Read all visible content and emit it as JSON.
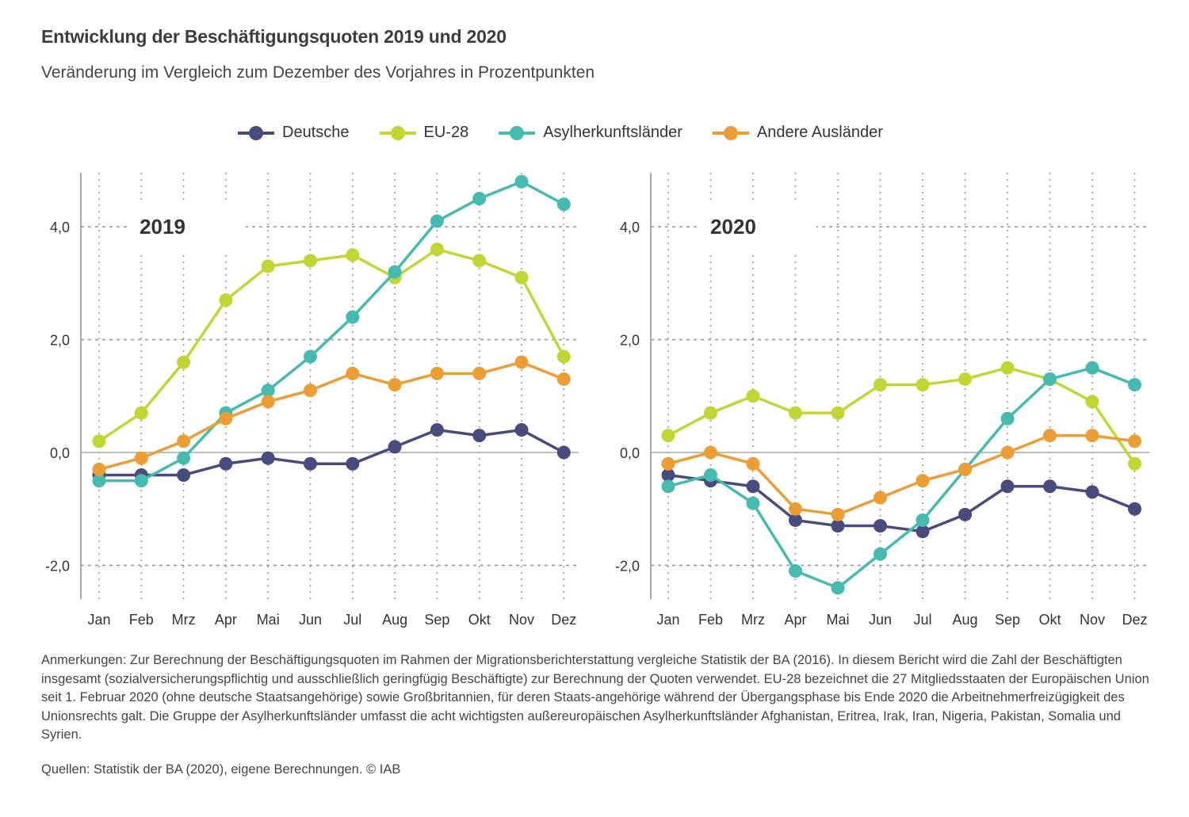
{
  "title": "Entwicklung der Beschäftigungsquoten 2019 und 2020",
  "subtitle": "Veränderung im Vergleich zum Dezember des Vorjahres in Prozentpunkten",
  "legend": [
    {
      "name": "Deutsche",
      "color": "#474b7e"
    },
    {
      "name": "EU-28",
      "color": "#c2d633"
    },
    {
      "name": "Asylherkunftsländer",
      "color": "#45bbb0"
    },
    {
      "name": "Andere Ausländer",
      "color": "#ec9d33"
    }
  ],
  "notes": "Anmerkungen: Zur Berechnung der Beschäftigungsquoten im Rahmen der Migrationsberichterstattung vergleiche Statistik der BA (2016). In diesem Bericht wird die Zahl der Beschäftigten insgesamt (sozialversicherungspflichtig und ausschließlich geringfügig Beschäftigte) zur Berechnung der Quoten verwendet. EU-28 bezeichnet die 27 Mitgliedsstaaten der Europäischen Union seit 1. Februar 2020 (ohne deutsche Staatsangehörige) sowie Großbritannien, für deren Staats-angehörige während der Übergangsphase bis Ende 2020 die Arbeitnehmerfreizügigkeit des Unionsrechts galt. Die Gruppe der Asylherkunftsländer umfasst die acht wichtigsten außereuropäischen Asylherkunftsländer Afghanistan, Eritrea, Irak, Iran, Nigeria, Pakistan, Somalia und Syrien.",
  "sources": "Quellen: Statistik der BA (2020), eigene Berechnungen.   © IAB",
  "chart_data": [
    {
      "type": "line",
      "title": "2019",
      "xlabel": "",
      "ylabel": "",
      "categories": [
        "Jan",
        "Feb",
        "Mrz",
        "Apr",
        "Mai",
        "Jun",
        "Jul",
        "Aug",
        "Sep",
        "Okt",
        "Nov",
        "Dez"
      ],
      "yticks": [
        -2.0,
        0.0,
        2.0,
        4.0
      ],
      "ytick_labels": [
        "-2,0",
        "0,0",
        "2,0",
        "4,0"
      ],
      "ylim": [
        -2.6,
        4.9
      ],
      "grid": true,
      "legend_position": "top-center",
      "series": [
        {
          "name": "Deutsche",
          "color": "#474b7e",
          "values": [
            -0.4,
            -0.4,
            -0.4,
            -0.2,
            -0.1,
            -0.2,
            -0.2,
            0.1,
            0.4,
            0.3,
            0.4,
            0.0
          ]
        },
        {
          "name": "EU-28",
          "color": "#c2d633",
          "values": [
            0.2,
            0.7,
            1.6,
            2.7,
            3.3,
            3.4,
            3.5,
            3.1,
            3.6,
            3.4,
            3.1,
            1.7
          ]
        },
        {
          "name": "Asylherkunftsländer",
          "color": "#45bbb0",
          "values": [
            -0.5,
            -0.5,
            -0.1,
            0.7,
            1.1,
            1.7,
            2.4,
            3.2,
            4.1,
            4.5,
            4.8,
            4.4
          ]
        },
        {
          "name": "Andere Ausländer",
          "color": "#ec9d33",
          "values": [
            -0.3,
            -0.1,
            0.2,
            0.6,
            0.9,
            1.1,
            1.4,
            1.2,
            1.4,
            1.4,
            1.6,
            1.3
          ]
        }
      ]
    },
    {
      "type": "line",
      "title": "2020",
      "xlabel": "",
      "ylabel": "",
      "categories": [
        "Jan",
        "Feb",
        "Mrz",
        "Apr",
        "Mai",
        "Jun",
        "Jul",
        "Aug",
        "Sep",
        "Okt",
        "Nov",
        "Dez"
      ],
      "yticks": [
        -2.0,
        0.0,
        2.0,
        4.0
      ],
      "ytick_labels": [
        "-2,0",
        "0,0",
        "2,0",
        "4,0"
      ],
      "ylim": [
        -2.6,
        4.9
      ],
      "grid": true,
      "legend_position": "top-center",
      "series": [
        {
          "name": "Deutsche",
          "color": "#474b7e",
          "values": [
            -0.4,
            -0.5,
            -0.6,
            -1.2,
            -1.3,
            -1.3,
            -1.4,
            -1.1,
            -0.6,
            -0.6,
            -0.7,
            -1.0
          ]
        },
        {
          "name": "EU-28",
          "color": "#c2d633",
          "values": [
            0.3,
            0.7,
            1.0,
            0.7,
            0.7,
            1.2,
            1.2,
            1.3,
            1.5,
            1.3,
            0.9,
            -0.2
          ]
        },
        {
          "name": "Asylherkunftsländer",
          "color": "#45bbb0",
          "values": [
            -0.6,
            -0.4,
            -0.9,
            -2.1,
            -2.4,
            -1.8,
            -1.2,
            -0.3,
            0.6,
            1.3,
            1.5,
            1.2
          ]
        },
        {
          "name": "Andere Ausländer",
          "color": "#ec9d33",
          "values": [
            -0.2,
            0.0,
            -0.2,
            -1.0,
            -1.1,
            -0.8,
            -0.5,
            -0.3,
            0.0,
            0.3,
            0.3,
            0.2
          ]
        }
      ]
    }
  ]
}
